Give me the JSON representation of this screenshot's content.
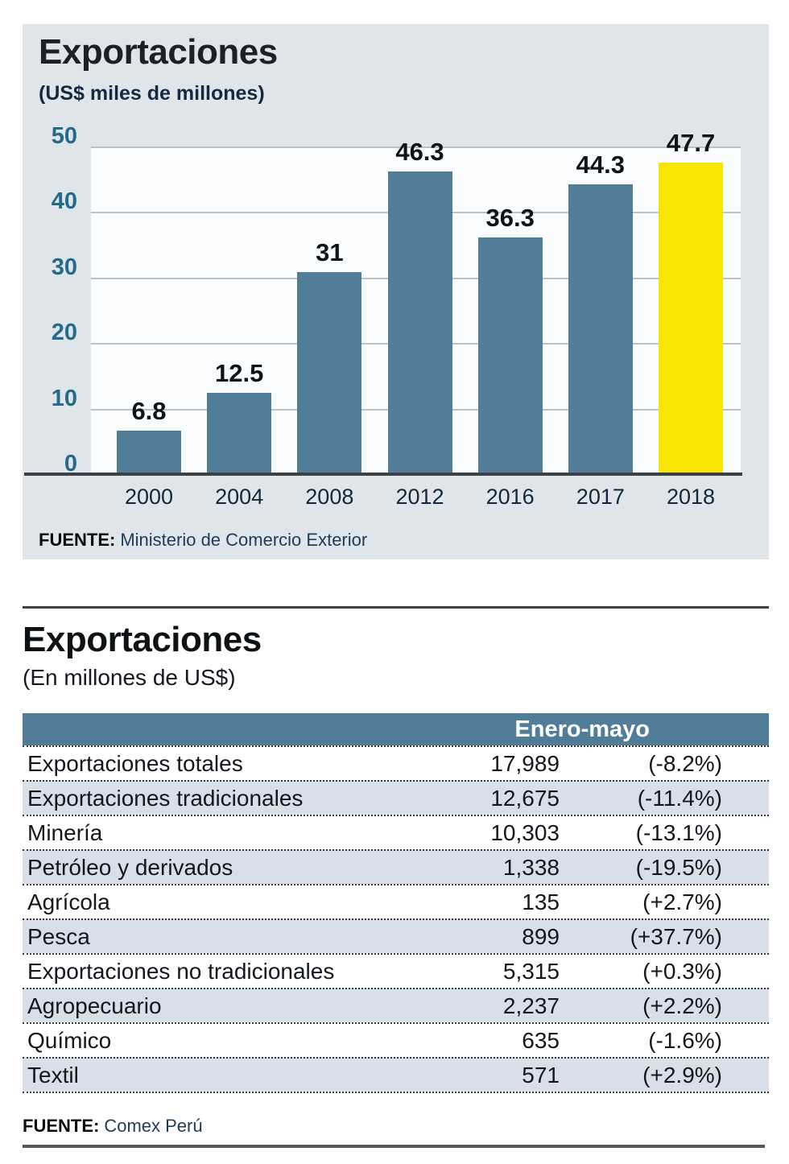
{
  "chart_section": {
    "title": "Exportaciones",
    "subtitle": "(US$ miles de millones)",
    "source_label": "FUENTE:",
    "source_text": "Ministerio de Comercio Exterior"
  },
  "chart_data": {
    "type": "bar",
    "title": "Exportaciones",
    "subtitle": "(US$ miles de millones)",
    "categories": [
      "2000",
      "2004",
      "2008",
      "2012",
      "2016",
      "2017",
      "2018"
    ],
    "values": [
      6.8,
      12.5,
      31,
      46.3,
      36.3,
      44.3,
      47.7
    ],
    "value_labels": [
      "6.8",
      "12.5",
      "31",
      "46.3",
      "36.3",
      "44.3",
      "47.7"
    ],
    "highlight_index": 6,
    "y_ticks": [
      0,
      10,
      20,
      30,
      40,
      50
    ],
    "ylim": [
      0,
      50
    ],
    "grid": true,
    "legend": "none",
    "bar_color": "#527d98",
    "highlight_color": "#f8e503",
    "tick_color": "#266a8b",
    "source": "FUENTE: Ministerio de Comercio Exterior"
  },
  "table_section": {
    "title": "Exportaciones",
    "subtitle": "(En millones de US$)",
    "column_header": "Enero-mayo",
    "rows": [
      {
        "label": "Exportaciones totales",
        "value": "17,989",
        "pct": "(-8.2%)"
      },
      {
        "label": "Exportaciones tradicionales",
        "value": "12,675",
        "pct": "(-11.4%)"
      },
      {
        "label": "Minería",
        "value": "10,303",
        "pct": "(-13.1%)"
      },
      {
        "label": "Petróleo y derivados",
        "value": "1,338",
        "pct": "(-19.5%)"
      },
      {
        "label": "Agrícola",
        "value": "135",
        "pct": "(+2.7%)"
      },
      {
        "label": "Pesca",
        "value": "899",
        "pct": "(+37.7%)"
      },
      {
        "label": "Exportaciones no tradicionales",
        "value": "5,315",
        "pct": "(+0.3%)"
      },
      {
        "label": "Agropecuario",
        "value": "2,237",
        "pct": "(+2.2%)"
      },
      {
        "label": "Químico",
        "value": "635",
        "pct": "(-1.6%)"
      },
      {
        "label": "Textil",
        "value": "571",
        "pct": "(+2.9%)"
      }
    ],
    "source_label": "FUENTE:",
    "source_text": "Comex Perú"
  },
  "colors": {
    "card_bg": "#dfe5e9",
    "plot_bg": "#fbfcfd",
    "bar": "#527d98",
    "highlight": "#f8e503",
    "header_bg": "#527d98",
    "row_alt_bg": "#d8dfe8",
    "tick_label": "#266a8b",
    "rule_dark": "#3d4247"
  }
}
